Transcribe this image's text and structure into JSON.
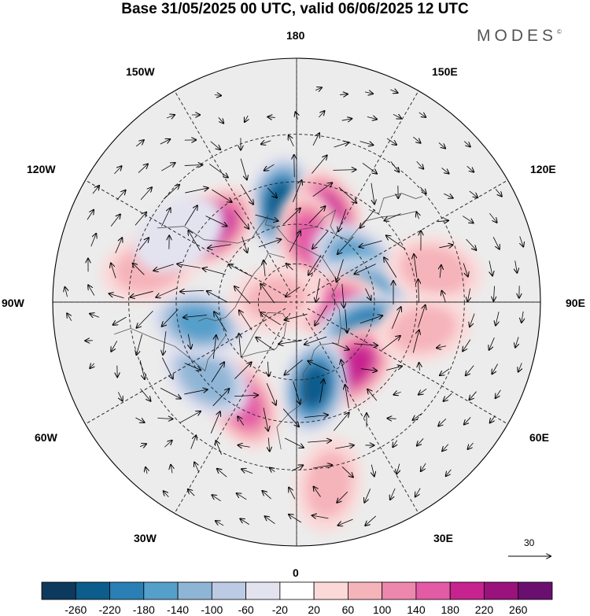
{
  "header": {
    "title": "Base 31/05/2025 00 UTC, valid 06/06/2025 12 UTC",
    "brand": "MODES",
    "brand_mark": "©"
  },
  "map": {
    "projection": "north-polar-stereographic",
    "longitude_labels": {
      "top": "180",
      "bottom": "0",
      "left": "90W",
      "right": "90E",
      "upper_left": "150W",
      "upper_left_mid": "120W",
      "upper_right": "150E",
      "upper_right_mid": "120E",
      "lower_left": "30W",
      "lower_left_mid": "60W",
      "lower_right": "30E",
      "lower_right_mid": "60E"
    },
    "anomaly_centers": [
      {
        "lat": 52,
        "lon": -171,
        "value": -230
      },
      {
        "lat": 55,
        "lon": 160,
        "value": 190
      },
      {
        "lat": 48,
        "lon": -132,
        "value": 190
      },
      {
        "lat": 65,
        "lon": 168,
        "value": 150
      },
      {
        "lat": 62,
        "lon": 124,
        "value": -160
      },
      {
        "lat": 63,
        "lon": 100,
        "value": -150
      },
      {
        "lat": 75,
        "lon": 85,
        "value": 150
      },
      {
        "lat": 62,
        "lon": 70,
        "value": -210
      },
      {
        "lat": 57,
        "lon": 42,
        "value": 190
      },
      {
        "lat": 57,
        "lon": 12,
        "value": -230
      },
      {
        "lat": 47,
        "lon": -28,
        "value": 150
      },
      {
        "lat": 46,
        "lon": -50,
        "value": -130
      },
      {
        "lat": 52,
        "lon": -78,
        "value": -150
      },
      {
        "lat": 35,
        "lon": -103,
        "value": 80
      },
      {
        "lat": 38,
        "lon": 103,
        "value": 80
      },
      {
        "lat": 42,
        "lon": 78,
        "value": 70
      },
      {
        "lat": 82,
        "lon": -100,
        "value": 60
      },
      {
        "lat": 25,
        "lon": 10,
        "value": 70
      },
      {
        "lat": 40,
        "lon": -120,
        "value": -50
      }
    ],
    "wind_reference": {
      "value": "30"
    }
  },
  "colorbar": {
    "colors": [
      "#0d3a5c",
      "#0c5c8c",
      "#2a7fb4",
      "#559fcb",
      "#8eb5d6",
      "#bccbe3",
      "#e3e3f0",
      "#ffffff",
      "#fbd9d9",
      "#f5b3ba",
      "#ee87ac",
      "#e35aa5",
      "#c6238f",
      "#9a127b",
      "#6a0f6f"
    ],
    "tick_labels": [
      "-260",
      "-220",
      "-180",
      "-140",
      "-100",
      "-60",
      "-20",
      "20",
      "60",
      "100",
      "140",
      "180",
      "220",
      "260"
    ]
  }
}
